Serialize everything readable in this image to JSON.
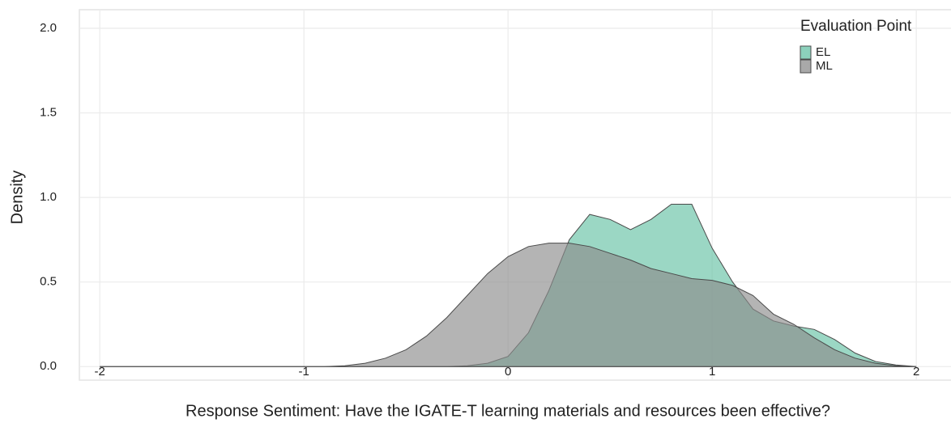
{
  "chart_data": {
    "type": "density",
    "x_label": "Response Sentiment: Have the IGATE-T learning materials and resources been effective?",
    "y_label": "Density",
    "legend_title": "Evaluation Point",
    "legend_position": "top-right",
    "grid": true,
    "x": [
      -2,
      -1.9,
      -1.8,
      -1.7,
      -1.6,
      -1.5,
      -1.4,
      -1.3,
      -1.2,
      -1.1,
      -1,
      -0.9,
      -0.8,
      -0.7,
      -0.6,
      -0.5,
      -0.4,
      -0.3,
      -0.2,
      -0.1,
      0,
      0.1,
      0.2,
      0.3,
      0.4,
      0.5,
      0.6,
      0.7,
      0.8,
      0.9,
      1,
      1.1,
      1.2,
      1.3,
      1.4,
      1.5,
      1.6,
      1.7,
      1.8,
      1.9,
      2
    ],
    "series": [
      {
        "name": "EL",
        "color": "#66c2a5",
        "values": [
          0,
          0,
          0,
          0,
          0,
          0,
          0,
          0,
          0,
          0,
          0,
          0,
          0,
          0,
          0,
          0,
          0,
          0,
          0.005,
          0.02,
          0.06,
          0.2,
          0.45,
          0.75,
          0.9,
          0.87,
          0.81,
          0.87,
          0.96,
          0.96,
          0.7,
          0.5,
          0.34,
          0.27,
          0.24,
          0.22,
          0.16,
          0.08,
          0.03,
          0.01,
          0
        ]
      },
      {
        "name": "ML",
        "color": "#8c8c8c",
        "values": [
          0,
          0,
          0,
          0,
          0,
          0,
          0,
          0,
          0,
          0,
          0,
          0,
          0.005,
          0.02,
          0.05,
          0.1,
          0.18,
          0.29,
          0.42,
          0.55,
          0.65,
          0.71,
          0.73,
          0.73,
          0.71,
          0.67,
          0.63,
          0.58,
          0.55,
          0.52,
          0.51,
          0.48,
          0.42,
          0.31,
          0.25,
          0.17,
          0.1,
          0.05,
          0.02,
          0.005,
          0
        ]
      }
    ],
    "xlim": [
      -2.1,
      2.17
    ],
    "ylim": [
      -0.08,
      2.11
    ],
    "xticks": [
      -2,
      -1,
      0,
      1,
      2
    ],
    "yticks": [
      {
        "value": 0,
        "label": "0.0"
      },
      0.5,
      {
        "value": 1,
        "label": "1.0"
      },
      1.5,
      {
        "value": 2,
        "label": "2.0"
      }
    ]
  }
}
